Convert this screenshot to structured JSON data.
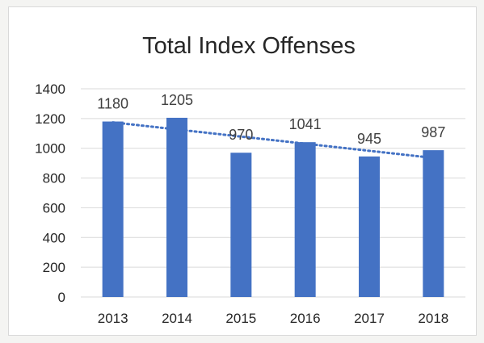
{
  "chart_data": {
    "type": "bar",
    "title": "Total Index Offenses",
    "xlabel": "",
    "ylabel": "",
    "categories": [
      "2013",
      "2014",
      "2015",
      "2016",
      "2017",
      "2018"
    ],
    "values": [
      1180,
      1205,
      970,
      1041,
      945,
      987
    ],
    "data_labels": [
      "1180",
      "1205",
      "970",
      "1041",
      "945",
      "987"
    ],
    "ylim": [
      0,
      1400
    ],
    "yticks": [
      0,
      200,
      400,
      600,
      800,
      1000,
      1200,
      1400
    ],
    "grid": true,
    "legend": "none",
    "trendline": {
      "type": "linear",
      "style": "dotted"
    },
    "colors": {
      "bar": "#4472C4",
      "trendline": "#4472C4",
      "grid": "#d9d9d9",
      "text": "#262626"
    }
  }
}
